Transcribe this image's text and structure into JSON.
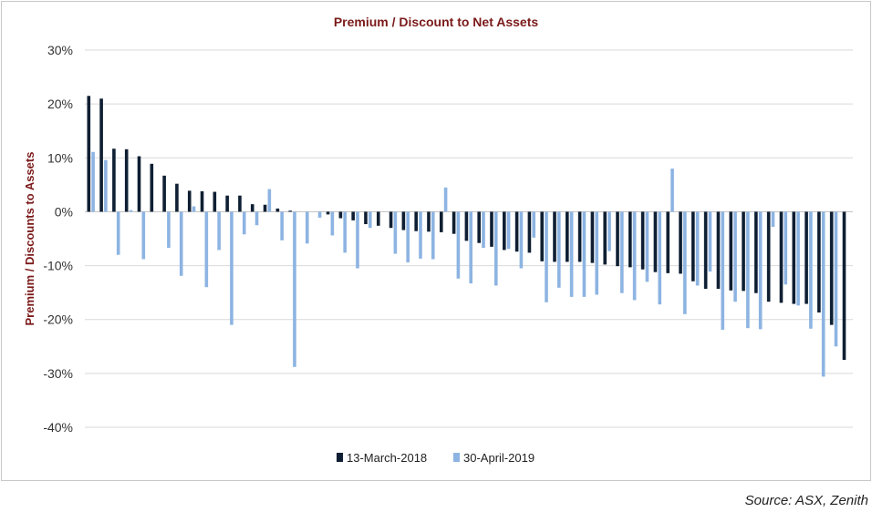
{
  "chart_data": {
    "type": "bar",
    "title": "Premium / Discount to Net Assets",
    "ylabel": "Premium / Discounts to Assets",
    "xlabel": "",
    "ylim": [
      -40,
      30
    ],
    "yticks": [
      "30%",
      "20%",
      "10%",
      "0%",
      "-10%",
      "-20%",
      "-30%",
      "-40%"
    ],
    "grid": true,
    "legend_position": "bottom",
    "colors": {
      "title": "#7b1a1a",
      "ylabel": "#7b1a1a",
      "series1": "#0f1f33",
      "series2": "#8db4e2",
      "grid": "#d9d9d9"
    },
    "series": [
      {
        "name": "13-March-2018",
        "values": [
          21.5,
          21.0,
          11.7,
          11.6,
          10.3,
          8.9,
          6.7,
          5.2,
          3.9,
          3.8,
          3.7,
          3.0,
          3.0,
          1.4,
          1.3,
          0.6,
          0.2,
          0.0,
          0.0,
          -0.5,
          -1.2,
          -1.6,
          -2.3,
          -2.6,
          -3.0,
          -3.4,
          -3.6,
          -3.7,
          -3.8,
          -4.1,
          -5.4,
          -5.8,
          -6.5,
          -7.1,
          -7.4,
          -7.6,
          -9.2,
          -9.3,
          -9.3,
          -9.3,
          -9.5,
          -9.8,
          -10.1,
          -10.3,
          -10.7,
          -11.2,
          -11.4,
          -11.5,
          -12.9,
          -14.3,
          -14.3,
          -14.6,
          -14.7,
          -15.1,
          -16.7,
          -16.9,
          -17.1,
          -17.1,
          -18.7,
          -21.0,
          -27.5
        ]
      },
      {
        "name": "30-April-2019",
        "values": [
          11.1,
          9.6,
          -8.0,
          0.3,
          -8.8,
          0.0,
          -6.7,
          -11.9,
          1.0,
          -14.0,
          -7.1,
          -21.0,
          -4.2,
          -2.5,
          4.2,
          -5.3,
          -28.8,
          -5.9,
          -1.1,
          -4.4,
          -7.6,
          -10.5,
          -3.0,
          0.0,
          -7.8,
          -9.4,
          -8.7,
          -8.8,
          4.5,
          -12.4,
          -13.3,
          -6.7,
          -13.7,
          -6.9,
          -10.5,
          -4.8,
          -16.8,
          -14.1,
          -15.8,
          -15.8,
          -15.4,
          -7.3,
          -15.1,
          -16.4,
          -13.0,
          -17.2,
          8.0,
          -19.0,
          -13.7,
          -11.1,
          -21.9,
          -16.7,
          -21.6,
          -21.8,
          -2.8,
          -13.5,
          -17.4,
          -21.7,
          -30.6,
          -25.0,
          0.0
        ]
      }
    ]
  },
  "source_text": "Source:  ASX, Zenith"
}
